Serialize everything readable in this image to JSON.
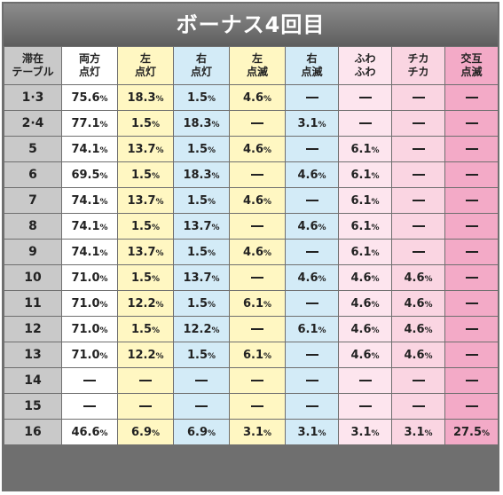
{
  "title": "ボーナス4回目",
  "columns": [
    [
      "滞在",
      "テーブル"
    ],
    [
      "両方",
      "点灯"
    ],
    [
      "左",
      "点灯"
    ],
    [
      "右",
      "点灯"
    ],
    [
      "左",
      "点滅"
    ],
    [
      "右",
      "点滅"
    ],
    [
      "ふわ",
      "ふわ"
    ],
    [
      "チカ",
      "チカ"
    ],
    [
      "交互",
      "点滅"
    ]
  ],
  "percent_unit": "%",
  "rows": [
    [
      "1·3",
      "75.6",
      "18.3",
      "1.5",
      "4.6",
      "-",
      "-",
      "-",
      "-"
    ],
    [
      "2·4",
      "77.1",
      "1.5",
      "18.3",
      "-",
      "3.1",
      "-",
      "-",
      "-"
    ],
    [
      "5",
      "74.1",
      "13.7",
      "1.5",
      "4.6",
      "-",
      "6.1",
      "-",
      "-"
    ],
    [
      "6",
      "69.5",
      "1.5",
      "18.3",
      "-",
      "4.6",
      "6.1",
      "-",
      "-"
    ],
    [
      "7",
      "74.1",
      "13.7",
      "1.5",
      "4.6",
      "-",
      "6.1",
      "-",
      "-"
    ],
    [
      "8",
      "74.1",
      "1.5",
      "13.7",
      "-",
      "4.6",
      "6.1",
      "-",
      "-"
    ],
    [
      "9",
      "74.1",
      "13.7",
      "1.5",
      "4.6",
      "-",
      "6.1",
      "-",
      "-"
    ],
    [
      "10",
      "71.0",
      "1.5",
      "13.7",
      "-",
      "4.6",
      "4.6",
      "4.6",
      "-"
    ],
    [
      "11",
      "71.0",
      "12.2",
      "1.5",
      "6.1",
      "-",
      "4.6",
      "4.6",
      "-"
    ],
    [
      "12",
      "71.0",
      "1.5",
      "12.2",
      "-",
      "6.1",
      "4.6",
      "4.6",
      "-"
    ],
    [
      "13",
      "71.0",
      "12.2",
      "1.5",
      "6.1",
      "-",
      "4.6",
      "4.6",
      "-"
    ],
    [
      "14",
      "-",
      "-",
      "-",
      "-",
      "-",
      "-",
      "-",
      "-"
    ],
    [
      "15",
      "-",
      "-",
      "-",
      "-",
      "-",
      "-",
      "-",
      "-"
    ],
    [
      "16",
      "46.6",
      "6.9",
      "6.9",
      "3.1",
      "3.1",
      "3.1",
      "3.1",
      "27.5"
    ]
  ],
  "colors": {
    "header_gray": "#c9c9c9",
    "yellow": "#fff7c2",
    "blue": "#d3ebf7",
    "light_pink": "#fde5ee",
    "pink": "#fad5e2",
    "deep_pink": "#f3aac7"
  }
}
